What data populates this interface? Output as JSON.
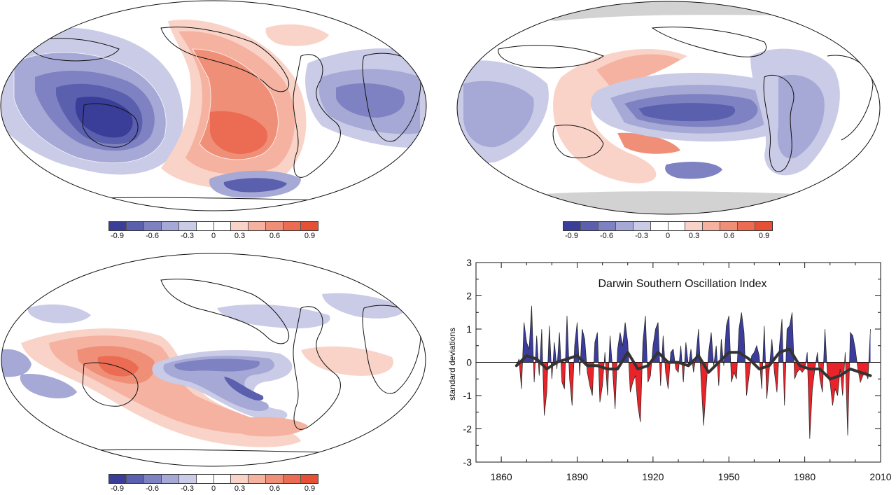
{
  "colorbar": {
    "colors": [
      "#3a3e98",
      "#5a5fae",
      "#7f82c2",
      "#a6a8d6",
      "#cacbe7",
      "#ffffff",
      "#ffffff",
      "#f9d3c7",
      "#f5b2a0",
      "#f08f78",
      "#eb6c52",
      "#e65035"
    ],
    "tick_labels": [
      "-0.9",
      "-0.6",
      "-0.3",
      "0",
      "0.3",
      "0.6",
      "0.9"
    ]
  },
  "maps": [
    {
      "name": "Correlation map (top-left)"
    },
    {
      "name": "Correlation map (top-right)"
    },
    {
      "name": "Correlation map (bottom-left)"
    }
  ],
  "chart_data": {
    "type": "area",
    "title": "Darwin Southern Oscillation Index",
    "xlabel": "",
    "ylabel": "standard deviations",
    "xlim": [
      1850,
      2010
    ],
    "ylim": [
      -3,
      3
    ],
    "x_ticks": [
      "1860",
      "1890",
      "1920",
      "1950",
      "1980",
      "2010"
    ],
    "y_ticks": [
      "3",
      "2",
      "1",
      "0",
      "-1",
      "-2",
      "-3"
    ],
    "positive_color": "#3c3c9c",
    "negative_color": "#e8242a",
    "smoothed_color": "#333333",
    "series": [
      {
        "name": "",
        "x": [
          1866,
          1867,
          1868,
          1869,
          1870,
          1871,
          1872,
          1873,
          1874,
          1875,
          1876,
          1877,
          1878,
          1879,
          1880,
          1881,
          1882,
          1883,
          1884,
          1885,
          1886,
          1887,
          1888,
          1889,
          1890,
          1891,
          1892,
          1893,
          1894,
          1895,
          1896,
          1897,
          1898,
          1899,
          1900,
          1901,
          1902,
          1903,
          1904,
          1905,
          1906,
          1907,
          1908,
          1909,
          1910,
          1911,
          1912,
          1913,
          1914,
          1915,
          1916,
          1917,
          1918,
          1919,
          1920,
          1921,
          1922,
          1923,
          1924,
          1925,
          1926,
          1927,
          1928,
          1929,
          1930,
          1931,
          1932,
          1933,
          1934,
          1935,
          1936,
          1937,
          1938,
          1939,
          1940,
          1941,
          1942,
          1943,
          1944,
          1945,
          1946,
          1947,
          1948,
          1949,
          1950,
          1951,
          1952,
          1953,
          1954,
          1955,
          1956,
          1957,
          1958,
          1959,
          1960,
          1961,
          1962,
          1963,
          1964,
          1965,
          1966,
          1967,
          1968,
          1969,
          1970,
          1971,
          1972,
          1973,
          1974,
          1975,
          1976,
          1977,
          1978,
          1979,
          1980,
          1981,
          1982,
          1983,
          1984,
          1985,
          1986,
          1987,
          1988,
          1989,
          1990,
          1991,
          1992,
          1993,
          1994,
          1995,
          1996,
          1997,
          1998,
          1999,
          2000,
          2001,
          2002,
          2003,
          2004,
          2005,
          2006
        ],
        "values": [
          -0.1,
          0.1,
          -0.8,
          1.2,
          0.6,
          0.4,
          1.7,
          -0.6,
          0.8,
          -0.4,
          1.0,
          -1.6,
          -0.9,
          1.1,
          -0.5,
          0.6,
          -0.2,
          0.9,
          -0.6,
          -0.8,
          1.4,
          -0.5,
          -1.3,
          0.5,
          1.2,
          -0.4,
          1.0,
          0.7,
          -0.3,
          -0.7,
          -1.0,
          0.6,
          0.9,
          -1.2,
          -0.7,
          0.3,
          -1.0,
          0.8,
          -0.2,
          -1.4,
          0.4,
          0.9,
          0.5,
          1.2,
          0.6,
          -0.9,
          -0.6,
          -0.4,
          -1.3,
          -1.8,
          0.6,
          1.4,
          -0.6,
          -0.4,
          0.5,
          1.0,
          1.2,
          -0.7,
          0.8,
          -0.3,
          -0.8,
          0.3,
          0.4,
          -0.2,
          -0.3,
          0.5,
          -0.6,
          0.6,
          -0.1,
          0.4,
          -0.3,
          0.2,
          1.0,
          -0.5,
          -1.9,
          -0.8,
          0.3,
          0.9,
          -0.1,
          0.5,
          -0.7,
          0.7,
          -0.1,
          1.1,
          1.4,
          -0.6,
          -0.3,
          -0.5,
          1.0,
          1.5,
          0.9,
          -1.0,
          -0.4,
          0.2,
          0.3,
          0.5,
          0.2,
          -0.8,
          1.1,
          -1.1,
          -0.2,
          0.7,
          -0.3,
          -0.9,
          0.5,
          1.3,
          -1.3,
          1.0,
          1.1,
          1.5,
          -0.5,
          -0.3,
          -0.2,
          -0.3,
          -0.2,
          0.3,
          -2.3,
          -0.8,
          -0.2,
          0.3,
          -0.5,
          -0.9,
          1.0,
          -0.4,
          -0.6,
          -1.3,
          -0.8,
          -1.0,
          -0.2,
          -1.0,
          0.3,
          -2.2,
          0.9,
          0.8,
          0.4,
          -0.2,
          -0.6,
          -0.4,
          -0.3,
          -0.5,
          1.0
        ]
      },
      {
        "name": "",
        "x": [
          1866,
          1870,
          1874,
          1878,
          1882,
          1886,
          1890,
          1894,
          1898,
          1902,
          1906,
          1910,
          1914,
          1918,
          1922,
          1926,
          1930,
          1934,
          1938,
          1942,
          1946,
          1950,
          1954,
          1958,
          1962,
          1966,
          1970,
          1974,
          1978,
          1982,
          1986,
          1990,
          1994,
          1998,
          2002,
          2006
        ],
        "values": [
          -0.1,
          0.2,
          0.1,
          -0.2,
          0.0,
          0.1,
          0.2,
          -0.1,
          -0.1,
          -0.2,
          -0.2,
          0.3,
          -0.2,
          -0.1,
          0.3,
          0.0,
          0.0,
          -0.1,
          0.2,
          -0.3,
          0.0,
          0.3,
          0.3,
          0.1,
          -0.2,
          -0.1,
          0.3,
          0.4,
          -0.1,
          -0.2,
          -0.2,
          -0.5,
          -0.4,
          -0.2,
          -0.3,
          -0.4
        ]
      }
    ]
  }
}
